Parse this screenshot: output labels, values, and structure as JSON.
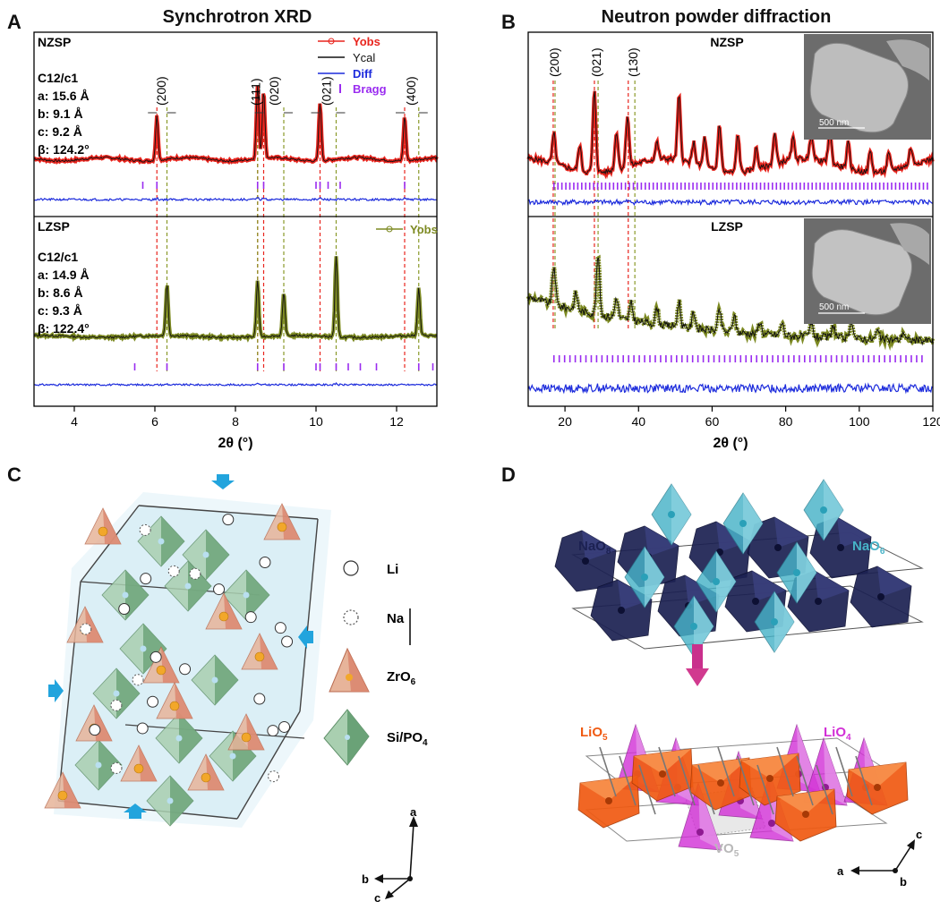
{
  "panels": {
    "A": {
      "letter": "A",
      "title": "Synchrotron XRD",
      "xlabel": "2θ (°)",
      "xlim": [
        3,
        13
      ],
      "xticks": [
        "4",
        "6",
        "8",
        "10",
        "12"
      ],
      "top": {
        "name": "NZSP",
        "params": [
          "C12/c1",
          "a: 15.6 Å",
          "b: 9.1 Å",
          "c: 9.2 Å",
          "β: 124.2°"
        ],
        "peaks": [
          6.05,
          8.55,
          8.7,
          10.1,
          12.2
        ],
        "peak_heights": [
          0.55,
          0.9,
          0.85,
          0.72,
          0.55
        ],
        "bragg": [
          5.7,
          6.05,
          8.55,
          8.7,
          10.0,
          10.1,
          10.3,
          10.6,
          12.2
        ]
      },
      "bottom": {
        "name": "LZSP",
        "params": [
          "C12/c1",
          "a: 14.9 Å",
          "b: 8.6 Å",
          "c: 9.3 Å",
          "β: 122.4°"
        ],
        "peaks": [
          6.3,
          8.55,
          9.2,
          10.5,
          12.55
        ],
        "peak_heights": [
          0.55,
          0.6,
          0.45,
          0.85,
          0.5
        ],
        "bragg": [
          5.5,
          6.3,
          8.55,
          9.2,
          10.0,
          10.1,
          10.5,
          10.8,
          11.1,
          11.5,
          12.55,
          12.9
        ]
      },
      "hkl": [
        "(200)",
        "(111)",
        "(020)",
        "(021)",
        "(400)"
      ],
      "hkl_x": [
        6.15,
        8.5,
        8.95,
        10.25,
        12.35
      ],
      "red_lines": [
        6.05,
        8.55,
        8.7,
        10.1,
        12.2
      ],
      "olive_lines": [
        6.3,
        8.55,
        9.2,
        10.5,
        12.55
      ],
      "legend_top": [
        "Yobs",
        "Ycal",
        "Diff",
        "Bragg"
      ],
      "legend_bottom": [
        "Yobs"
      ]
    },
    "B": {
      "letter": "B",
      "title": "Neutron powder diffraction",
      "xlabel": "2θ (°)",
      "xlim": [
        10,
        120
      ],
      "xticks": [
        "20",
        "40",
        "60",
        "80",
        "100",
        "120"
      ],
      "top": {
        "name": "NZSP",
        "scale": "500 nm",
        "peaks": [
          17,
          24,
          28,
          34,
          37,
          45,
          51,
          55,
          58,
          62,
          67,
          72,
          77,
          82,
          87,
          92,
          97,
          103,
          108,
          114
        ],
        "peak_heights": [
          0.35,
          0.3,
          0.95,
          0.45,
          0.6,
          0.2,
          0.75,
          0.25,
          0.35,
          0.55,
          0.45,
          0.25,
          0.35,
          0.25,
          0.3,
          0.4,
          0.3,
          0.25,
          0.2,
          0.2
        ]
      },
      "bottom": {
        "name": "LZSP",
        "scale": "500 nm",
        "peaks": [
          17,
          23,
          29,
          34,
          38,
          45,
          51,
          55,
          62,
          66,
          73,
          79,
          87,
          93,
          98,
          105,
          112
        ],
        "peak_heights": [
          0.45,
          0.2,
          0.7,
          0.25,
          0.2,
          0.2,
          0.3,
          0.2,
          0.25,
          0.2,
          0.15,
          0.15,
          0.15,
          0.15,
          0.2,
          0.1,
          0.1
        ]
      },
      "hkl": [
        "(200)",
        "(021)",
        "(130)"
      ],
      "hkl_x": [
        17,
        28.5,
        38.5
      ],
      "red_lines": [
        16.8,
        28,
        37.2
      ],
      "olive_lines": [
        17.3,
        29,
        39
      ]
    },
    "C": {
      "letter": "C",
      "legend": [
        "Li",
        "Na",
        "ZrO",
        "Si/PO"
      ],
      "legend_sub": [
        "",
        "",
        "6",
        "4"
      ],
      "axes": [
        "a",
        "b",
        "c"
      ]
    },
    "D": {
      "letter": "D",
      "labels_top": [
        "NaO",
        "NaO"
      ],
      "labels_top_sub": [
        "8",
        "6"
      ],
      "labels_bottom": [
        "LiO",
        "LiO",
        "VO"
      ],
      "labels_bottom_sub": [
        "5",
        "4",
        "5"
      ],
      "axes": [
        "a",
        "b",
        "c"
      ]
    }
  },
  "colors": {
    "yobs_red": "#e8241d",
    "ycal": "#111111",
    "diff": "#1c2bdc",
    "bragg": "#9a2cf0",
    "yobs_olive": "#7d8a22",
    "red_line": "#e8241d",
    "olive_line": "#8a9a2a",
    "naO8": "#1c2152",
    "naO6": "#47b3c8",
    "liO5": "#f05a12",
    "liO4": "#d22fd6",
    "zrO6": "#d9826a",
    "siPO4": "#6aa277",
    "cell": "#cbe8f3",
    "arrow": "#22a4dd"
  }
}
